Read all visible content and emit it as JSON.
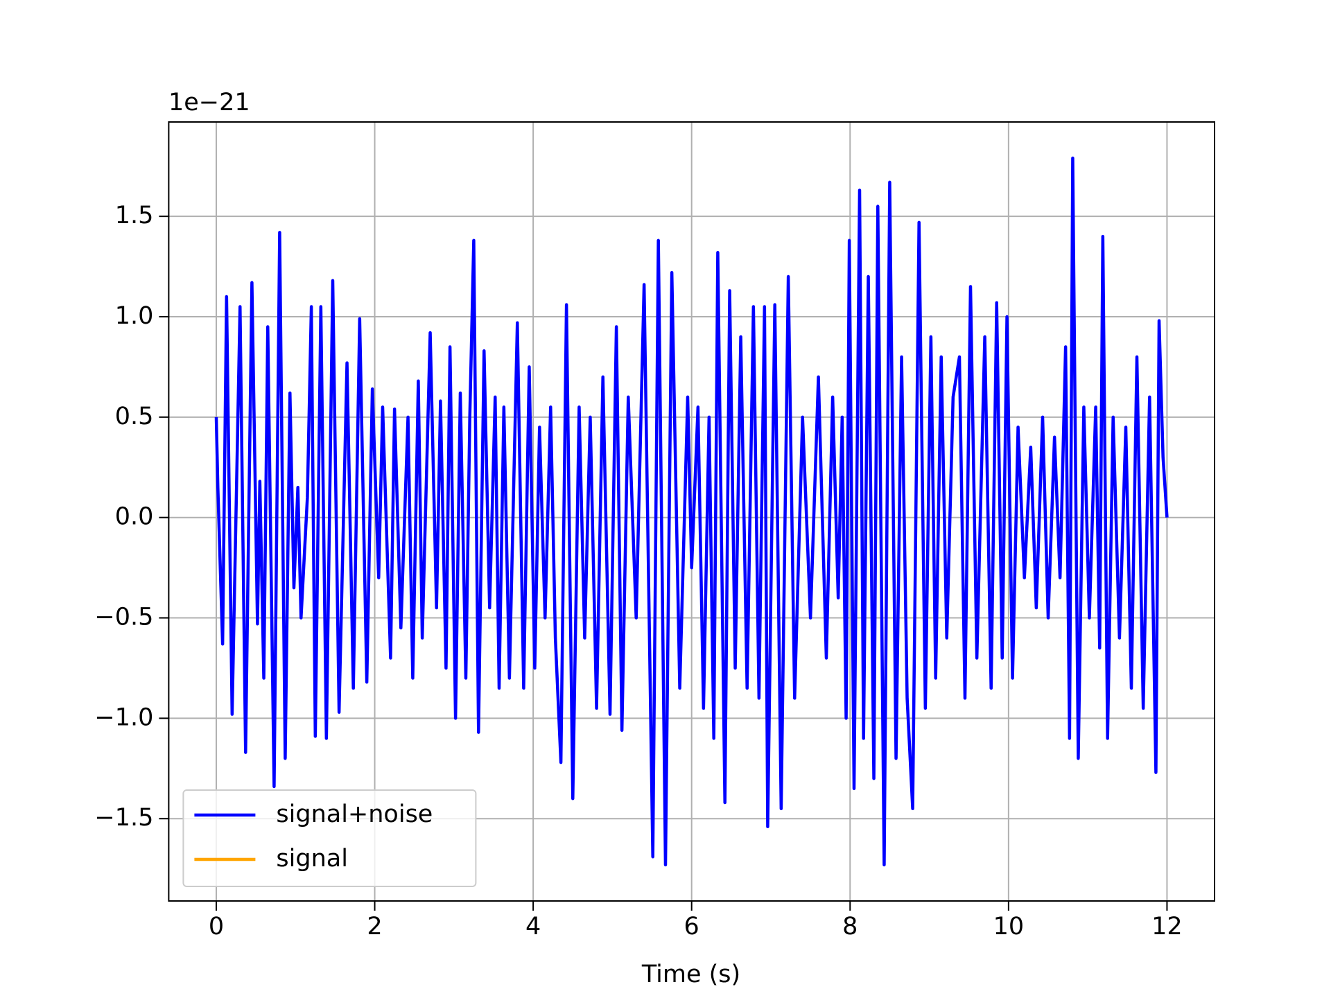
{
  "chart_data": {
    "type": "line",
    "x_label": "Time (s)",
    "y_offset": "1e−21",
    "x": [
      0.0,
      0.02,
      0.08,
      0.13,
      0.2,
      0.3,
      0.37,
      0.45,
      0.52,
      0.55,
      0.6,
      0.65,
      0.73,
      0.8,
      0.87,
      0.93,
      0.98,
      1.03,
      1.07,
      1.15,
      1.2,
      1.25,
      1.32,
      1.39,
      1.47,
      1.55,
      1.65,
      1.73,
      1.81,
      1.9,
      1.97,
      2.05,
      2.1,
      2.2,
      2.25,
      2.33,
      2.42,
      2.48,
      2.55,
      2.6,
      2.7,
      2.78,
      2.83,
      2.9,
      2.95,
      3.02,
      3.08,
      3.15,
      3.2,
      3.25,
      3.31,
      3.38,
      3.45,
      3.52,
      3.57,
      3.63,
      3.7,
      3.8,
      3.88,
      3.95,
      4.02,
      4.08,
      4.15,
      4.22,
      4.28,
      4.35,
      4.42,
      4.5,
      4.58,
      4.65,
      4.72,
      4.8,
      4.88,
      4.97,
      5.05,
      5.12,
      5.2,
      5.3,
      5.4,
      5.51,
      5.58,
      5.67,
      5.75,
      5.85,
      5.95,
      6.0,
      6.08,
      6.15,
      6.22,
      6.28,
      6.33,
      6.42,
      6.48,
      6.55,
      6.62,
      6.7,
      6.78,
      6.85,
      6.92,
      6.96,
      7.05,
      7.13,
      7.22,
      7.3,
      7.4,
      7.5,
      7.6,
      7.7,
      7.78,
      7.85,
      7.9,
      7.95,
      7.99,
      8.05,
      8.12,
      8.17,
      8.23,
      8.3,
      8.35,
      8.43,
      8.5,
      8.58,
      8.65,
      8.72,
      8.79,
      8.87,
      8.95,
      9.02,
      9.08,
      9.15,
      9.22,
      9.3,
      9.38,
      9.45,
      9.52,
      9.6,
      9.7,
      9.78,
      9.85,
      9.92,
      9.98,
      10.05,
      10.12,
      10.2,
      10.28,
      10.35,
      10.43,
      10.5,
      10.58,
      10.65,
      10.72,
      10.77,
      10.81,
      10.88,
      10.95,
      11.02,
      11.1,
      11.15,
      11.19,
      11.25,
      11.32,
      11.4,
      11.48,
      11.55,
      11.62,
      11.7,
      11.78,
      11.86,
      11.9,
      11.95,
      12.0
    ],
    "series": [
      {
        "name": "signal+noise",
        "color": "blue",
        "values": [
          0.5,
          0.15,
          -0.63,
          1.1,
          -0.98,
          1.05,
          -1.17,
          1.17,
          -0.53,
          0.18,
          -0.8,
          0.95,
          -1.34,
          1.42,
          -1.2,
          0.62,
          -0.35,
          0.15,
          -0.5,
          0.1,
          1.05,
          -1.09,
          1.05,
          -1.1,
          1.18,
          -0.97,
          0.77,
          -0.85,
          0.99,
          -0.82,
          0.64,
          -0.3,
          0.55,
          -0.7,
          0.54,
          -0.55,
          0.5,
          -0.8,
          0.68,
          -0.6,
          0.92,
          -0.45,
          0.58,
          -0.75,
          0.85,
          -1.0,
          0.62,
          -0.8,
          0.5,
          1.38,
          -1.07,
          0.83,
          -0.45,
          0.6,
          -0.85,
          0.55,
          -0.8,
          0.97,
          -0.85,
          0.75,
          -0.75,
          0.45,
          -0.5,
          0.55,
          -0.6,
          -1.22,
          1.06,
          -1.4,
          0.55,
          -0.6,
          0.5,
          -0.95,
          0.7,
          -0.98,
          0.95,
          -1.06,
          0.6,
          -0.5,
          1.16,
          -1.69,
          1.38,
          -1.73,
          1.22,
          -0.85,
          0.6,
          -0.25,
          0.55,
          -0.95,
          0.5,
          -1.1,
          1.32,
          -1.42,
          1.13,
          -0.75,
          0.9,
          -0.85,
          1.05,
          -0.9,
          1.05,
          -1.54,
          1.06,
          -1.45,
          1.2,
          -0.9,
          0.5,
          -0.5,
          0.7,
          -0.7,
          0.6,
          -0.4,
          0.5,
          -1.0,
          1.38,
          -1.35,
          1.63,
          -1.1,
          1.2,
          -1.3,
          1.55,
          -1.73,
          1.67,
          -1.2,
          0.8,
          -0.9,
          -1.45,
          1.47,
          -0.95,
          0.9,
          -0.8,
          0.8,
          -0.6,
          0.6,
          0.8,
          -0.9,
          1.15,
          -0.7,
          0.9,
          -0.85,
          1.07,
          -0.7,
          1.0,
          -0.8,
          0.45,
          -0.3,
          0.35,
          -0.45,
          0.5,
          -0.5,
          0.4,
          -0.3,
          0.85,
          -1.1,
          1.79,
          -1.2,
          0.55,
          -0.5,
          0.55,
          -0.65,
          1.4,
          -1.1,
          0.5,
          -0.6,
          0.45,
          -0.85,
          0.8,
          -0.95,
          0.6,
          -1.27,
          0.98,
          0.3,
          0.0
        ]
      },
      {
        "name": "signal",
        "color": "orange",
        "values": [
          null,
          null,
          null,
          null,
          null,
          null,
          null,
          null,
          null,
          null,
          null,
          null,
          null,
          null,
          null,
          null,
          null,
          null,
          null,
          null,
          null,
          null,
          null,
          null,
          null,
          null,
          null,
          null,
          null,
          null,
          null,
          null,
          null,
          null,
          null,
          null,
          null,
          null,
          null,
          null,
          null,
          null,
          null,
          null,
          null,
          null,
          null,
          null,
          null,
          null,
          null,
          null,
          null,
          null,
          null,
          null,
          null,
          null,
          null,
          null,
          null,
          null,
          null,
          null,
          null,
          null,
          null,
          null,
          null,
          null,
          null,
          null,
          null,
          null,
          null,
          null,
          null,
          null,
          null,
          null,
          null,
          null,
          null,
          null,
          null,
          null,
          null,
          null,
          null,
          null,
          null,
          null,
          null,
          null,
          null,
          null,
          null,
          null,
          null,
          null,
          null,
          null,
          null,
          null,
          null,
          null,
          null,
          null,
          null,
          null,
          null,
          null,
          null,
          null,
          null,
          null,
          null,
          null,
          null,
          null,
          null,
          null,
          null,
          null,
          null,
          null,
          null,
          null,
          null,
          null,
          null,
          null,
          null,
          null,
          null,
          null,
          null,
          null,
          null,
          null,
          null,
          null,
          null,
          null,
          null,
          null,
          null,
          null,
          null,
          null,
          null,
          null,
          null,
          null,
          null,
          null,
          null,
          null,
          null,
          null,
          null,
          null,
          null,
          null,
          null,
          null,
          null,
          null,
          null,
          null,
          null
        ]
      }
    ],
    "xlim": [
      -0.6,
      12.6
    ],
    "ylim": [
      -1.91,
      1.97
    ],
    "xticks": [
      0,
      2,
      4,
      6,
      8,
      10,
      12
    ],
    "yticks": [
      {
        "value": -1.5,
        "label": "−1.5"
      },
      {
        "value": -1.0,
        "label": "−1.0"
      },
      {
        "value": -0.5,
        "label": "−0.5"
      },
      {
        "value": 0.0,
        "label": "0.0"
      },
      0.5,
      {
        "value": 1.0,
        "label": "1.0"
      },
      1.5
    ],
    "grid": true,
    "legend": "lower left"
  }
}
